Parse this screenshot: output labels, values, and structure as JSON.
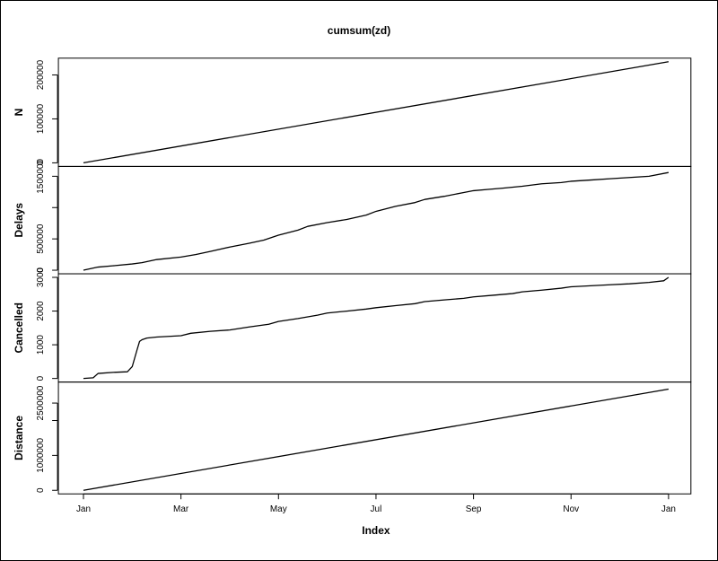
{
  "chart_data": {
    "type": "line",
    "title": "cumsum(zd)",
    "xlabel": "Index",
    "x_ticks": [
      "Jan",
      "Mar",
      "May",
      "Jul",
      "Sep",
      "Nov",
      "Jan"
    ],
    "x_tick_positions": [
      0,
      2,
      4,
      6,
      8,
      10,
      12
    ],
    "xlim": [
      0,
      12
    ],
    "panels": [
      {
        "ylabel": "N",
        "ylim": [
          0,
          230000
        ],
        "y_ticks": [
          0,
          100000,
          200000
        ],
        "y_tick_labels": [
          "0",
          "100000",
          "200000"
        ],
        "x": [
          0,
          12
        ],
        "values": [
          0,
          230000
        ]
      },
      {
        "ylabel": "Delays",
        "ylim": [
          0,
          1600000
        ],
        "y_ticks": [
          0,
          500000,
          1000000,
          1500000
        ],
        "y_tick_labels": [
          "0",
          "500000",
          "",
          "1500000"
        ],
        "x": [
          0,
          0.3,
          0.6,
          1.0,
          1.2,
          1.5,
          2.0,
          2.3,
          2.6,
          3.0,
          3.4,
          3.7,
          4.0,
          4.4,
          4.6,
          5.0,
          5.4,
          5.8,
          6.0,
          6.4,
          6.8,
          7.0,
          7.4,
          7.8,
          8.0,
          8.3,
          8.6,
          9.0,
          9.4,
          9.8,
          10.0,
          10.4,
          10.8,
          11.2,
          11.6,
          12.0
        ],
        "values": [
          0,
          50000,
          70000,
          100000,
          120000,
          170000,
          210000,
          250000,
          300000,
          370000,
          430000,
          480000,
          560000,
          640000,
          700000,
          760000,
          810000,
          880000,
          940000,
          1020000,
          1080000,
          1130000,
          1180000,
          1240000,
          1270000,
          1290000,
          1310000,
          1340000,
          1380000,
          1400000,
          1420000,
          1440000,
          1460000,
          1480000,
          1500000,
          1560000
        ]
      },
      {
        "ylabel": "Cancelled",
        "ylim": [
          0,
          3000
        ],
        "y_ticks": [
          0,
          1000,
          2000,
          3000
        ],
        "y_tick_labels": [
          "0",
          "1000",
          "2000",
          "3000"
        ],
        "x": [
          0,
          0.2,
          0.3,
          0.6,
          0.9,
          1.0,
          1.1,
          1.15,
          1.2,
          1.3,
          1.5,
          2.0,
          2.2,
          2.6,
          3.0,
          3.4,
          3.8,
          4.0,
          4.4,
          4.8,
          5.0,
          5.4,
          5.8,
          6.0,
          6.4,
          6.8,
          7.0,
          7.4,
          7.8,
          8.0,
          8.4,
          8.8,
          9.0,
          9.4,
          9.8,
          10.0,
          10.4,
          10.8,
          11.2,
          11.6,
          11.9,
          12.0
        ],
        "values": [
          0,
          20,
          150,
          180,
          200,
          350,
          850,
          1100,
          1150,
          1200,
          1230,
          1270,
          1340,
          1400,
          1440,
          1530,
          1610,
          1690,
          1780,
          1880,
          1940,
          2000,
          2060,
          2100,
          2160,
          2220,
          2280,
          2330,
          2380,
          2420,
          2470,
          2520,
          2570,
          2620,
          2680,
          2720,
          2750,
          2780,
          2810,
          2850,
          2900,
          3000
        ]
      },
      {
        "ylabel": "Distance",
        "ylim": [
          0,
          3000000
        ],
        "y_ticks": [
          0,
          1000000,
          2000000,
          2500000
        ],
        "y_tick_labels": [
          "0",
          "1000000",
          "",
          "2500000"
        ],
        "x": [
          0,
          12
        ],
        "values": [
          0,
          2900000
        ]
      }
    ]
  }
}
